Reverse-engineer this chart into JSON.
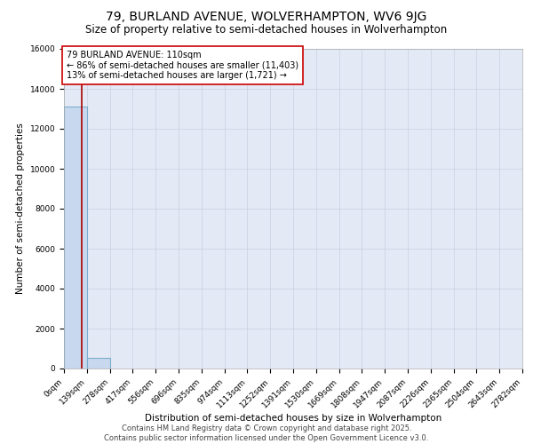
{
  "title": "79, BURLAND AVENUE, WOLVERHAMPTON, WV6 9JG",
  "subtitle": "Size of property relative to semi-detached houses in Wolverhampton",
  "xlabel": "Distribution of semi-detached houses by size in Wolverhampton",
  "ylabel": "Number of semi-detached properties",
  "property_size": 110,
  "bar_edges": [
    0,
    139,
    278,
    417,
    556,
    696,
    835,
    974,
    1113,
    1252,
    1391,
    1530,
    1669,
    1808,
    1947,
    2087,
    2226,
    2365,
    2504,
    2643,
    2782
  ],
  "bar_heights": [
    13124,
    529,
    0,
    0,
    0,
    0,
    0,
    0,
    0,
    0,
    0,
    0,
    0,
    0,
    0,
    0,
    0,
    0,
    0,
    0
  ],
  "bar_color": "#c8d8ee",
  "bar_edgecolor": "#7aaecc",
  "bar_linewidth": 0.8,
  "vline_x": 110,
  "vline_color": "#aa0000",
  "vline_linewidth": 1.2,
  "annotation_line1": "79 BURLAND AVENUE: 110sqm",
  "annotation_line2": "← 86% of semi-detached houses are smaller (11,403)",
  "annotation_line3": "13% of semi-detached houses are larger (1,721) →",
  "ylim": [
    0,
    16000
  ],
  "grid_color": "#c8cfe0",
  "bg_color": "#e4eaf5",
  "footer_line1": "Contains HM Land Registry data © Crown copyright and database right 2025.",
  "footer_line2": "Contains public sector information licensed under the Open Government Licence v3.0.",
  "tick_labels": [
    "0sqm",
    "139sqm",
    "278sqm",
    "417sqm",
    "556sqm",
    "696sqm",
    "835sqm",
    "974sqm",
    "1113sqm",
    "1252sqm",
    "1391sqm",
    "1530sqm",
    "1669sqm",
    "1808sqm",
    "1947sqm",
    "2087sqm",
    "2226sqm",
    "2365sqm",
    "2504sqm",
    "2643sqm",
    "2782sqm"
  ],
  "yticks": [
    0,
    2000,
    4000,
    6000,
    8000,
    10000,
    12000,
    14000,
    16000
  ],
  "title_fontsize": 10,
  "subtitle_fontsize": 8.5,
  "axis_label_fontsize": 7.5,
  "tick_fontsize": 6.5,
  "annotation_fontsize": 7,
  "footer_fontsize": 6
}
